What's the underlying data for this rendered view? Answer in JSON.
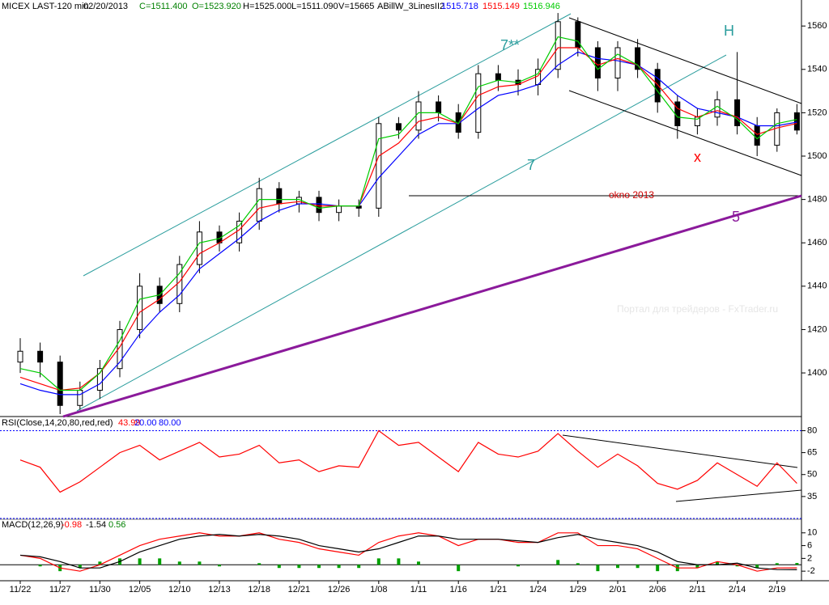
{
  "chart_data": [
    {
      "type": "candlestick",
      "title": "MICEX LAST-120 min",
      "date": "02/20/2013",
      "info": [
        "C=1511.400",
        "O=1523.920",
        "H=1525.000",
        "L=1511.090",
        "V=15665"
      ],
      "indicator": "ABillW_3LinesII2",
      "indicator_values": [
        "1515.718",
        "1515.149",
        "1516.946"
      ],
      "categories": [
        "11/22",
        null,
        "11/27",
        null,
        "11/30",
        null,
        "12/05",
        null,
        "12/10",
        null,
        "12/13",
        null,
        "12/18",
        null,
        "12/21",
        null,
        "12/26",
        null,
        "1/08",
        null,
        "1/11",
        null,
        "1/16",
        null,
        "1/21",
        null,
        "1/24",
        null,
        "1/29",
        null,
        "2/01",
        null,
        "2/06",
        null,
        "2/11",
        null,
        "2/14",
        null,
        "2/19",
        null
      ],
      "open": [
        1405,
        1410,
        1405,
        1385,
        1392,
        1402,
        1420,
        1440,
        1432,
        1450,
        1465,
        1460,
        1470,
        1485,
        1478,
        1481,
        1474,
        1477,
        1476,
        1515,
        1512,
        1525,
        1520,
        1511,
        1538,
        1535,
        1533,
        1540,
        1562,
        1550,
        1536,
        1550,
        1540,
        1525,
        1514,
        1518,
        1526,
        1514,
        1505,
        1520
      ],
      "high": [
        1416,
        1414,
        1408,
        1396,
        1406,
        1424,
        1446,
        1444,
        1454,
        1470,
        1468,
        1474,
        1490,
        1488,
        1484,
        1484,
        1480,
        1480,
        1518,
        1518,
        1530,
        1528,
        1524,
        1542,
        1542,
        1540,
        1545,
        1566,
        1564,
        1553,
        1553,
        1554,
        1543,
        1528,
        1522,
        1530,
        1548,
        1518,
        1522,
        1524
      ],
      "low": [
        1400,
        1398,
        1381,
        1383,
        1388,
        1398,
        1416,
        1428,
        1428,
        1446,
        1456,
        1456,
        1466,
        1474,
        1474,
        1470,
        1470,
        1472,
        1472,
        1508,
        1508,
        1516,
        1508,
        1508,
        1530,
        1528,
        1528,
        1536,
        1546,
        1530,
        1530,
        1536,
        1520,
        1508,
        1510,
        1514,
        1510,
        1500,
        1502,
        1510
      ],
      "close": [
        1410,
        1405,
        1385,
        1392,
        1402,
        1420,
        1440,
        1432,
        1450,
        1465,
        1460,
        1470,
        1485,
        1478,
        1481,
        1474,
        1477,
        1476,
        1515,
        1512,
        1525,
        1520,
        1511,
        1538,
        1535,
        1533,
        1540,
        1562,
        1550,
        1536,
        1550,
        1540,
        1525,
        1514,
        1518,
        1526,
        1514,
        1505,
        1520,
        1512
      ],
      "candle_color": "#000000",
      "series": [
        {
          "color": "#0000ff",
          "values": [
            1395,
            1392,
            1390,
            1390,
            1395,
            1405,
            1418,
            1428,
            1436,
            1448,
            1455,
            1462,
            1470,
            1475,
            1478,
            1478,
            1477,
            1477,
            1490,
            1500,
            1510,
            1515,
            1515,
            1522,
            1528,
            1530,
            1533,
            1542,
            1548,
            1545,
            1544,
            1542,
            1536,
            1528,
            1522,
            1520,
            1518,
            1514,
            1514,
            1515.7
          ]
        },
        {
          "color": "#ff0000",
          "values": [
            1398,
            1395,
            1392,
            1393,
            1400,
            1412,
            1428,
            1434,
            1442,
            1455,
            1460,
            1466,
            1476,
            1478,
            1479,
            1477,
            1477,
            1477,
            1500,
            1506,
            1516,
            1518,
            1515,
            1528,
            1532,
            1533,
            1537,
            1550,
            1550,
            1542,
            1545,
            1542,
            1533,
            1522,
            1518,
            1521,
            1518,
            1510,
            1513,
            1515.1
          ]
        },
        {
          "color": "#00cc00",
          "values": [
            1402,
            1400,
            1392,
            1392,
            1400,
            1415,
            1434,
            1436,
            1446,
            1460,
            1462,
            1468,
            1480,
            1480,
            1480,
            1476,
            1477,
            1477,
            1508,
            1510,
            1520,
            1520,
            1515,
            1532,
            1535,
            1534,
            1538,
            1555,
            1553,
            1540,
            1547,
            1542,
            1530,
            1518,
            1517,
            1523,
            1517,
            1508,
            1515,
            1516.9
          ]
        }
      ],
      "ylim": [
        1381,
        1572
      ],
      "yticks": [
        1400,
        1420,
        1440,
        1460,
        1480,
        1500,
        1520,
        1540,
        1560
      ],
      "annotations": [
        "7**",
        "7",
        "H",
        "x",
        "okno 2013",
        "5",
        "Портал для трейдеров - FxTrader.ru"
      ]
    },
    {
      "type": "line",
      "title": "RSI(Close,14,20,80,red,red)",
      "current": "43.99",
      "levels": [
        {
          "value": 20,
          "label": "20.00"
        },
        {
          "value": 80,
          "label": "80.00"
        }
      ],
      "level_color": "#0000ff",
      "series": [
        {
          "color": "#ff0000",
          "values": [
            60,
            55,
            38,
            45,
            55,
            65,
            70,
            60,
            66,
            72,
            62,
            64,
            70,
            58,
            60,
            52,
            56,
            55,
            80,
            70,
            72,
            62,
            52,
            72,
            64,
            62,
            66,
            78,
            66,
            55,
            64,
            56,
            44,
            40,
            46,
            58,
            50,
            42,
            58,
            43.99
          ]
        }
      ],
      "ylim": [
        20,
        88
      ],
      "yticks": [
        35,
        50,
        65,
        80
      ]
    },
    {
      "type": "line",
      "title": "MACD(12,26,9)",
      "current": [
        "-0.98",
        "-1.54",
        "0.56"
      ],
      "series": [
        {
          "color": "#00a000",
          "kind": "bar",
          "values": [
            0,
            -0.5,
            -2,
            -1,
            1,
            2,
            2,
            2,
            1,
            1,
            -0.5,
            0,
            0.5,
            -1,
            -1,
            -1,
            -1,
            -1,
            2,
            2,
            1,
            0,
            -2,
            0,
            0,
            -0.5,
            0,
            1.5,
            0.5,
            -2,
            -1,
            -1,
            -2,
            -2,
            -1,
            1,
            -0.5,
            -1,
            0.5,
            0.56
          ]
        },
        {
          "color": "#ff0000",
          "values": [
            3,
            2,
            -1,
            -2,
            0,
            3,
            6,
            8,
            9,
            10,
            9,
            9,
            10,
            8,
            7,
            5,
            4,
            3,
            7,
            9,
            10,
            9,
            6,
            8,
            8,
            7,
            7,
            10,
            10,
            6,
            6,
            5,
            2,
            -1,
            -1,
            1,
            0,
            -2,
            -1,
            -0.98
          ]
        },
        {
          "color": "#000000",
          "values": [
            3,
            2.5,
            1,
            -1,
            -1,
            1,
            4,
            6,
            8,
            9,
            9.5,
            9,
            9.5,
            9,
            8,
            6,
            5,
            4,
            5,
            7,
            9,
            9,
            8,
            8,
            8,
            7.5,
            7,
            8.5,
            9.5,
            8,
            7,
            6,
            4,
            1,
            0,
            0,
            0.5,
            -1,
            -1.5,
            -1.54
          ]
        }
      ],
      "ylim": [
        -5,
        14
      ],
      "yticks": [
        -2,
        2,
        6,
        10
      ]
    }
  ]
}
